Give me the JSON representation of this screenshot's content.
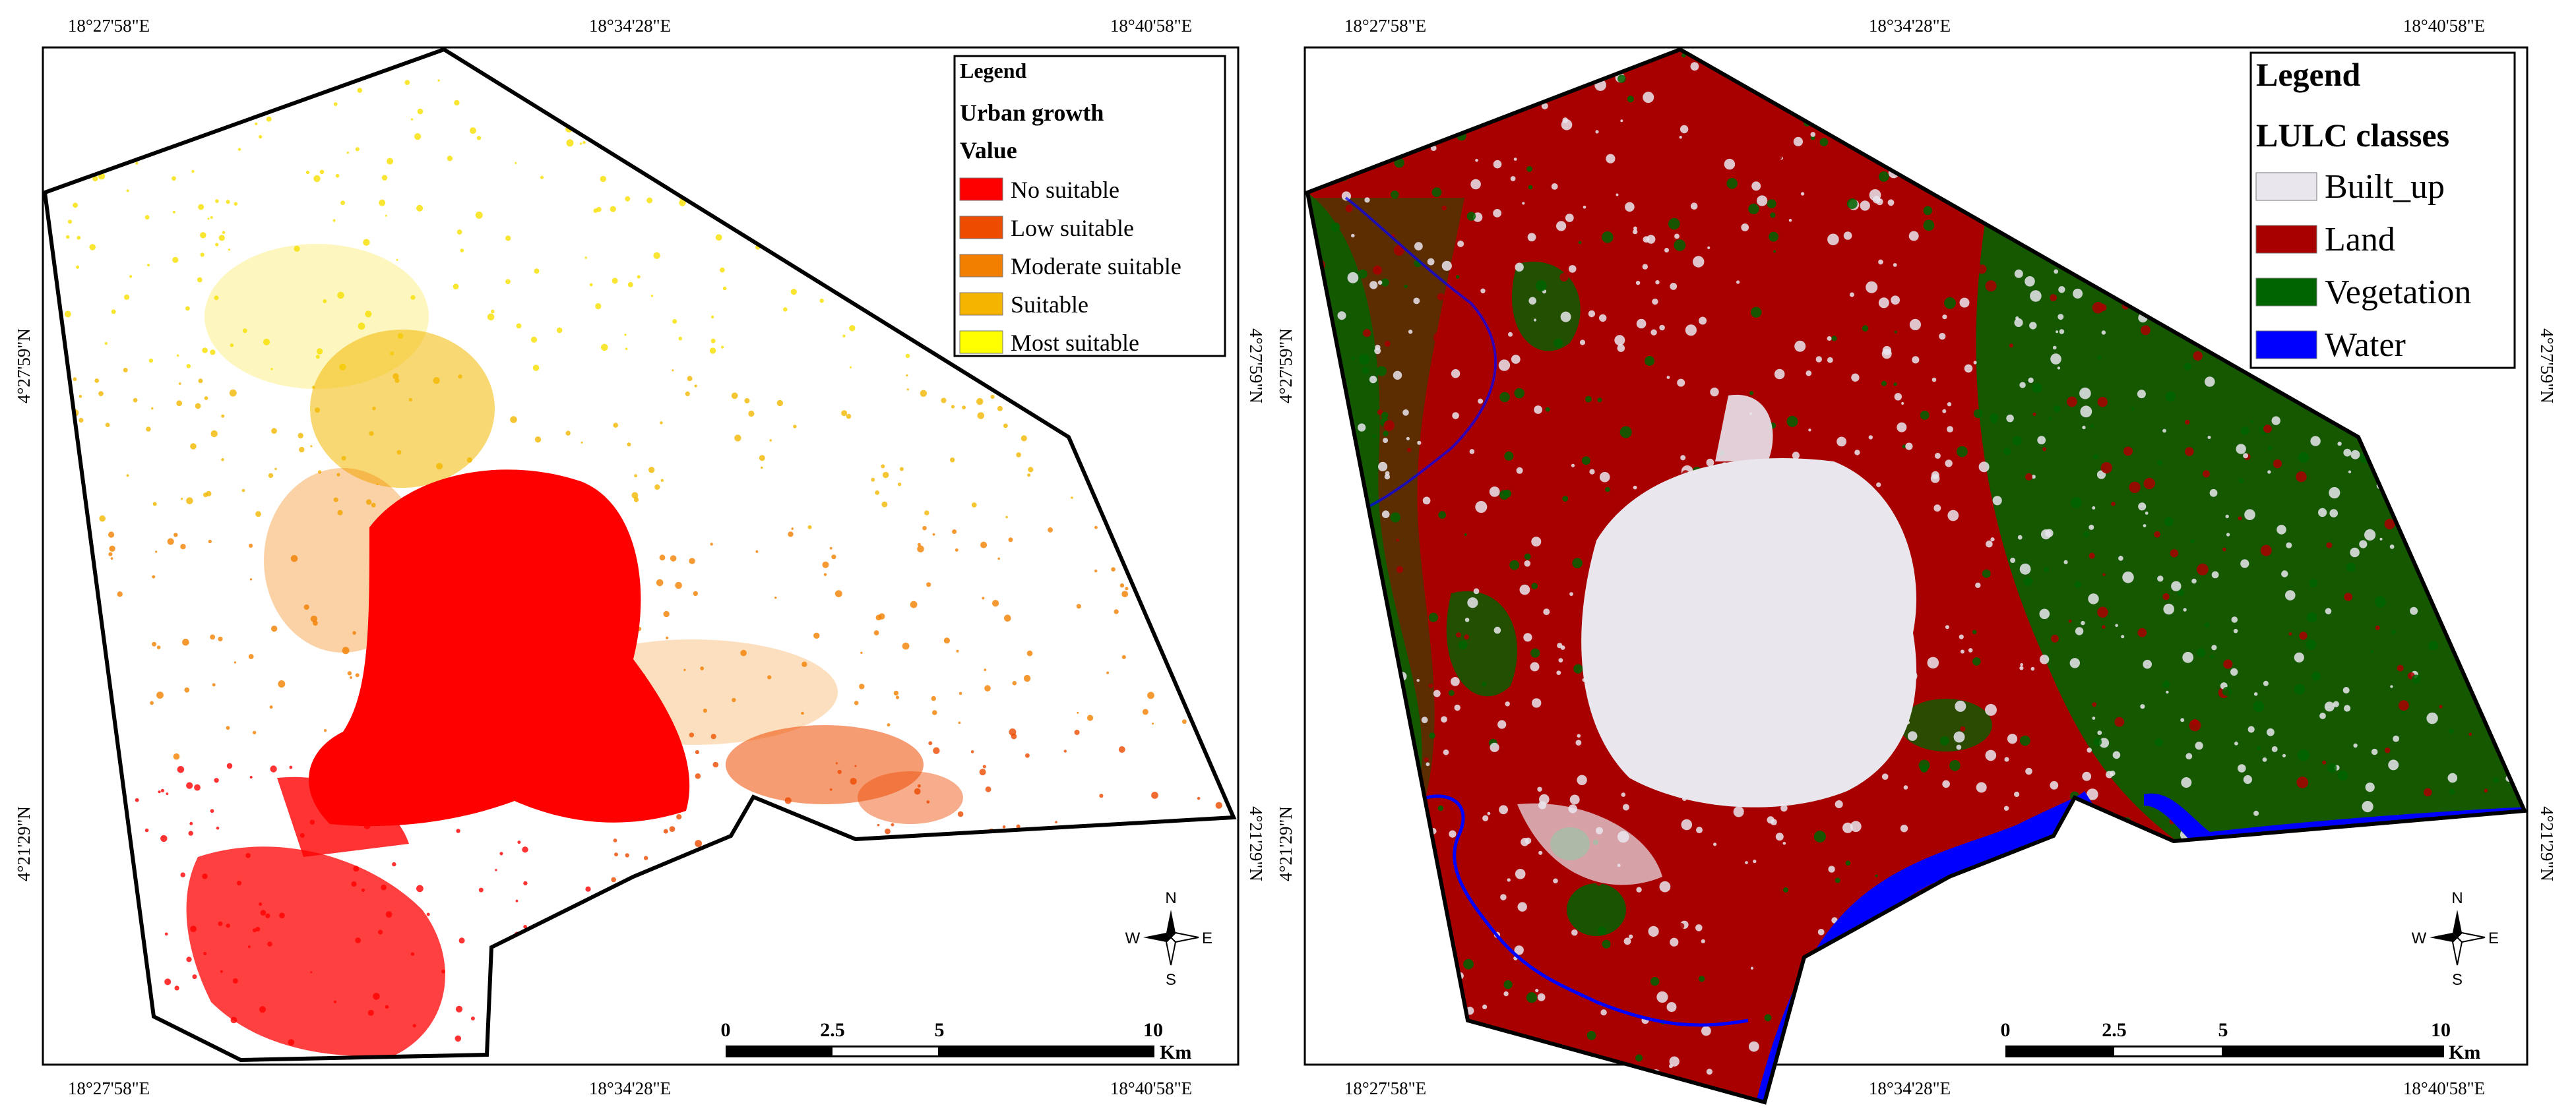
{
  "left_map": {
    "legend": {
      "title": "Legend",
      "subtitle": "Urban growth",
      "field": "Value",
      "items": [
        {
          "label": "No suitable",
          "color": "#ff0000"
        },
        {
          "label": "Low suitable",
          "color": "#ee4a00"
        },
        {
          "label": "Moderate suitable",
          "color": "#f37f00"
        },
        {
          "label": "Suitable",
          "color": "#f5b400"
        },
        {
          "label": "Most suitable",
          "color": "#ffff00"
        }
      ]
    },
    "coords": {
      "top": [
        "18°27'58\"E",
        "18°34'28\"E",
        "18°40'58\"E"
      ],
      "bottom": [
        "18°27'58\"E",
        "18°34'28\"E",
        "18°40'58\"E"
      ],
      "left": [
        "4°27'59\"N",
        "4°21'29\"N"
      ],
      "right": [
        "4°27'59\"N",
        "4°21'29\"N"
      ]
    },
    "scale": {
      "ticks": [
        "0",
        "2.5",
        "5",
        "10"
      ],
      "unit": "Km"
    },
    "north_arrow": {
      "n": "N",
      "s": "S",
      "e": "E",
      "w": "W"
    }
  },
  "right_map": {
    "legend": {
      "title": "Legend",
      "subtitle": "LULC classes",
      "items": [
        {
          "label": "Built_up",
          "color": "#e9e6ee"
        },
        {
          "label": "Land",
          "color": "#a80000"
        },
        {
          "label": "Vegetation",
          "color": "#006400"
        },
        {
          "label": "Water",
          "color": "#0000ff"
        }
      ]
    },
    "coords": {
      "top": [
        "18°27'58\"E",
        "18°34'28\"E",
        "18°40'58\"E"
      ],
      "bottom": [
        "18°27'58\"E",
        "18°34'28\"E",
        "18°40'58\"E"
      ],
      "left": [
        "4°27'59\"N",
        "4°21'29\"N"
      ],
      "right": [
        "4°27'59\"N",
        "4°21'29\"N"
      ]
    },
    "scale": {
      "ticks": [
        "0",
        "2.5",
        "5",
        "10"
      ],
      "unit": "Km"
    },
    "north_arrow": {
      "n": "N",
      "s": "S",
      "e": "E",
      "w": "W"
    }
  }
}
